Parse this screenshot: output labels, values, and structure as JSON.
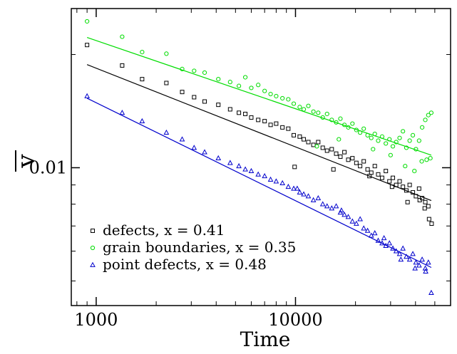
{
  "chart_data": {
    "type": "scatter",
    "xlabel": "Time",
    "ylabel": "v",
    "xscale": "log",
    "yscale": "log",
    "xlim": [
      750,
      60000
    ],
    "ylim": [
      0.0043,
      0.0265
    ],
    "x_ticks": [
      {
        "value": 1000,
        "label": "1000"
      },
      {
        "value": 10000,
        "label": "10000"
      }
    ],
    "y_ticks": [
      {
        "value": 0.01,
        "label": "0.01"
      }
    ],
    "legend_position": "bottom-left",
    "series": [
      {
        "name": "defects, x = 0.41",
        "color": "#000000",
        "marker": "square",
        "fit": {
          "x": [
            900,
            48000
          ],
          "y": [
            0.0188,
            0.00818
          ]
        },
        "points": [
          [
            900,
            0.0212
          ],
          [
            1350,
            0.0187
          ],
          [
            1700,
            0.0172
          ],
          [
            2250,
            0.0168
          ],
          [
            2700,
            0.0159
          ],
          [
            3100,
            0.0154
          ],
          [
            3500,
            0.015
          ],
          [
            4100,
            0.0147
          ],
          [
            4700,
            0.0143
          ],
          [
            5200,
            0.014
          ],
          [
            5600,
            0.0139
          ],
          [
            6000,
            0.0136
          ],
          [
            6500,
            0.0134
          ],
          [
            7000,
            0.0133
          ],
          [
            7500,
            0.013
          ],
          [
            8000,
            0.0131
          ],
          [
            8600,
            0.0128
          ],
          [
            9200,
            0.0127
          ],
          [
            9800,
            0.0122
          ],
          [
            10500,
            0.0121
          ],
          [
            11000,
            0.0119
          ],
          [
            11600,
            0.0117
          ],
          [
            12300,
            0.0115
          ],
          [
            13000,
            0.0117
          ],
          [
            13700,
            0.0113
          ],
          [
            14400,
            0.0111
          ],
          [
            15200,
            0.0112
          ],
          [
            16000,
            0.0109
          ],
          [
            16800,
            0.0107
          ],
          [
            17600,
            0.011
          ],
          [
            18400,
            0.0105
          ],
          [
            19300,
            0.0106
          ],
          [
            20200,
            0.0103
          ],
          [
            21100,
            0.0101
          ],
          [
            22000,
            0.0104
          ],
          [
            23000,
            0.0099
          ],
          [
            24000,
            0.0097
          ],
          [
            25000,
            0.0101
          ],
          [
            26000,
            0.0096
          ],
          [
            27200,
            0.0094
          ],
          [
            28400,
            0.0098
          ],
          [
            29600,
            0.0092
          ],
          [
            30800,
            0.0094
          ],
          [
            32000,
            0.009
          ],
          [
            33300,
            0.0092
          ],
          [
            34600,
            0.0089
          ],
          [
            36000,
            0.0087
          ],
          [
            37400,
            0.009
          ],
          [
            38800,
            0.0086
          ],
          [
            40200,
            0.0084
          ],
          [
            41700,
            0.0088
          ],
          [
            43200,
            0.0083
          ],
          [
            44800,
            0.0081
          ],
          [
            46400,
            0.0079
          ],
          [
            9900,
            0.01005
          ],
          [
            15500,
            0.0099
          ],
          [
            23500,
            0.0095
          ],
          [
            30500,
            0.0089
          ],
          [
            36500,
            0.0081
          ],
          [
            42000,
            0.0082
          ],
          [
            44500,
            0.0078
          ],
          [
            46800,
            0.0073
          ],
          [
            48200,
            0.0071
          ]
        ]
      },
      {
        "name": "grain boundaries, x = 0.35",
        "color": "#00dd00",
        "marker": "circle",
        "fit": {
          "x": [
            900,
            48000
          ],
          "y": [
            0.0222
          ],
          "y_end": 0.0108
        },
        "points": [
          [
            900,
            0.0245
          ],
          [
            1350,
            0.0223
          ],
          [
            1700,
            0.0203
          ],
          [
            2250,
            0.0201
          ],
          [
            2700,
            0.0183
          ],
          [
            3100,
            0.0181
          ],
          [
            3500,
            0.0179
          ],
          [
            4100,
            0.0172
          ],
          [
            4700,
            0.0169
          ],
          [
            5200,
            0.0165
          ],
          [
            5600,
            0.0174
          ],
          [
            6000,
            0.0163
          ],
          [
            6500,
            0.0166
          ],
          [
            7000,
            0.016
          ],
          [
            7500,
            0.0157
          ],
          [
            8000,
            0.0155
          ],
          [
            8600,
            0.0153
          ],
          [
            9200,
            0.0152
          ],
          [
            9800,
            0.0148
          ],
          [
            10500,
            0.0145
          ],
          [
            11000,
            0.0143
          ],
          [
            11600,
            0.0146
          ],
          [
            12300,
            0.0141
          ],
          [
            13000,
            0.014
          ],
          [
            13700,
            0.0136
          ],
          [
            14400,
            0.0139
          ],
          [
            15200,
            0.0134
          ],
          [
            16000,
            0.0132
          ],
          [
            16800,
            0.0135
          ],
          [
            17600,
            0.013
          ],
          [
            18400,
            0.0128
          ],
          [
            19300,
            0.0131
          ],
          [
            20200,
            0.0126
          ],
          [
            21100,
            0.0124
          ],
          [
            22000,
            0.0127
          ],
          [
            23000,
            0.0122
          ],
          [
            24000,
            0.012
          ],
          [
            25000,
            0.0123
          ],
          [
            26000,
            0.0118
          ],
          [
            27200,
            0.0121
          ],
          [
            28400,
            0.0116
          ],
          [
            29600,
            0.0119
          ],
          [
            30800,
            0.0114
          ],
          [
            32000,
            0.0117
          ],
          [
            33300,
            0.012
          ],
          [
            34600,
            0.0125
          ],
          [
            36000,
            0.0113
          ],
          [
            37400,
            0.0118
          ],
          [
            38800,
            0.0122
          ],
          [
            40200,
            0.0112
          ],
          [
            41700,
            0.0118
          ],
          [
            43200,
            0.0128
          ],
          [
            44800,
            0.0134
          ],
          [
            46400,
            0.0138
          ],
          [
            48000,
            0.014
          ],
          [
            12800,
            0.0114
          ],
          [
            16500,
            0.0119
          ],
          [
            24500,
            0.0112
          ],
          [
            30000,
            0.0108
          ],
          [
            35500,
            0.0101
          ],
          [
            39500,
            0.0098
          ],
          [
            43000,
            0.0104
          ],
          [
            45500,
            0.0105
          ],
          [
            47500,
            0.0106
          ]
        ]
      },
      {
        "name": "point defects, x = 0.48",
        "color": "#0000cc",
        "marker": "triangle",
        "fit": {
          "x": [
            900,
            48000
          ],
          "y": [
            0.0153
          ],
          "y_end": 0.00543
        },
        "points": [
          [
            900,
            0.0155
          ],
          [
            1350,
            0.014
          ],
          [
            1700,
            0.0133
          ],
          [
            2250,
            0.0124
          ],
          [
            2700,
            0.0119
          ],
          [
            3100,
            0.0113
          ],
          [
            3500,
            0.011
          ],
          [
            4100,
            0.0106
          ],
          [
            4700,
            0.0103
          ],
          [
            5200,
            0.0101
          ],
          [
            5600,
            0.0099
          ],
          [
            6000,
            0.0098
          ],
          [
            6500,
            0.0096
          ],
          [
            7000,
            0.0095
          ],
          [
            7500,
            0.0093
          ],
          [
            8000,
            0.0092
          ],
          [
            8600,
            0.0091
          ],
          [
            9200,
            0.0089
          ],
          [
            9800,
            0.0088
          ],
          [
            10500,
            0.0086
          ],
          [
            11000,
            0.0085
          ],
          [
            11600,
            0.0084
          ],
          [
            12300,
            0.0082
          ],
          [
            13000,
            0.0083
          ],
          [
            13700,
            0.008
          ],
          [
            14400,
            0.0079
          ],
          [
            15200,
            0.0078
          ],
          [
            16000,
            0.0079
          ],
          [
            16800,
            0.0076
          ],
          [
            17600,
            0.0075
          ],
          [
            18400,
            0.0074
          ],
          [
            19300,
            0.0072
          ],
          [
            20200,
            0.0071
          ],
          [
            21100,
            0.0073
          ],
          [
            22000,
            0.0069
          ],
          [
            23000,
            0.0068
          ],
          [
            24000,
            0.0066
          ],
          [
            25000,
            0.0067
          ],
          [
            26000,
            0.0064
          ],
          [
            27200,
            0.0063
          ],
          [
            28400,
            0.0062
          ],
          [
            29600,
            0.0063
          ],
          [
            30800,
            0.0061
          ],
          [
            32000,
            0.006
          ],
          [
            33300,
            0.0059
          ],
          [
            34600,
            0.0061
          ],
          [
            36000,
            0.0058
          ],
          [
            37400,
            0.0057
          ],
          [
            38800,
            0.0059
          ],
          [
            40200,
            0.0056
          ],
          [
            41700,
            0.0055
          ],
          [
            43200,
            0.0057
          ],
          [
            44800,
            0.0054
          ],
          [
            46400,
            0.0056
          ],
          [
            48000,
            0.00465
          ],
          [
            10200,
            0.0088
          ],
          [
            17000,
            0.0077
          ],
          [
            27800,
            0.0065
          ],
          [
            33800,
            0.0057
          ],
          [
            39800,
            0.0054
          ],
          [
            45000,
            0.0053
          ]
        ]
      }
    ]
  }
}
